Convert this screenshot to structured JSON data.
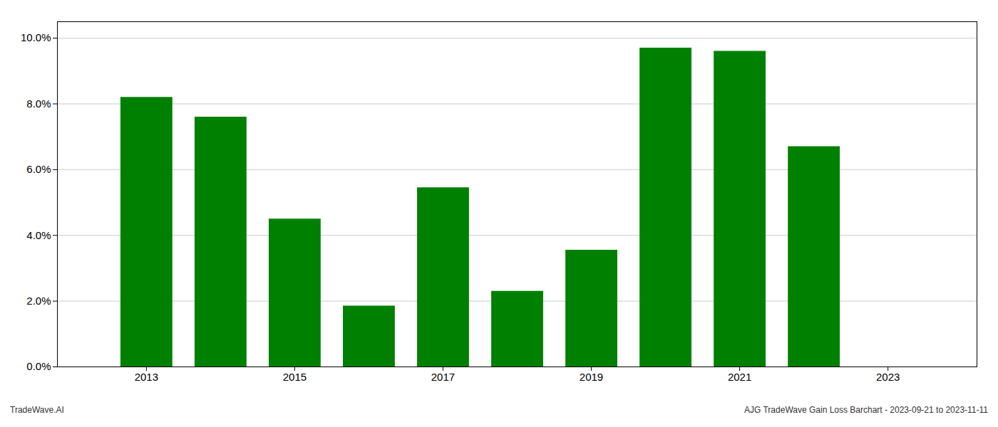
{
  "chart_data": {
    "type": "bar",
    "x": [
      2013,
      2014,
      2015,
      2016,
      2017,
      2018,
      2019,
      2020,
      2021,
      2022
    ],
    "values": [
      0.082,
      0.076,
      0.045,
      0.0185,
      0.0545,
      0.023,
      0.0355,
      0.097,
      0.096,
      0.067
    ],
    "color": "#008000",
    "xlim": [
      2011.8,
      2024.2
    ],
    "xticks": [
      2013,
      2015,
      2017,
      2019,
      2021,
      2023
    ],
    "ylim": [
      0,
      0.105
    ],
    "yticks": [
      {
        "value": 0.0,
        "label": "0.0%"
      },
      {
        "value": 0.02,
        "label": "2.0%"
      },
      {
        "value": 0.04,
        "label": "4.0%"
      },
      {
        "value": 0.06,
        "label": "6.0%"
      },
      {
        "value": 0.08,
        "label": "8.0%"
      },
      {
        "value": 0.1,
        "label": "10.0%"
      }
    ],
    "grid": true,
    "annotations": [
      "TradeWave.AI",
      "AJG TradeWave Gain Loss Barchart - 2023-09-21 to 2023-11-11"
    ]
  }
}
